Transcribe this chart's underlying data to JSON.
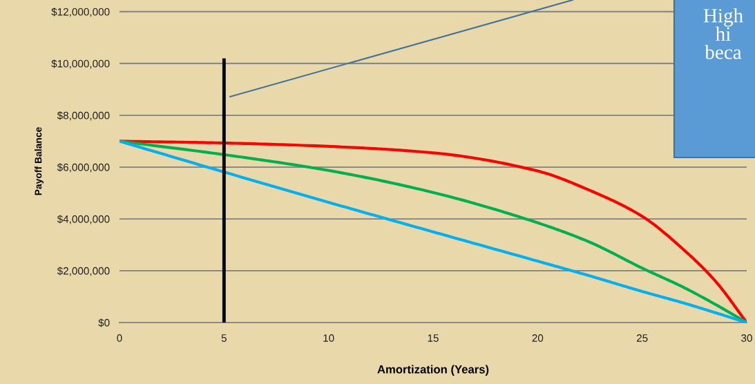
{
  "chart_data": {
    "type": "line",
    "xlabel": "Amortization (Years)",
    "ylabel": "Payoff Balance",
    "x": [
      0,
      5,
      10,
      15,
      20,
      22.5,
      25,
      27,
      28.5,
      30
    ],
    "series": [
      {
        "color": "#ff0000",
        "values": [
          7000000,
          6930000,
          6800000,
          6550000,
          5850000,
          5100000,
          4100000,
          2800000,
          1600000,
          0
        ]
      },
      {
        "color": "#00b050",
        "values": [
          7000000,
          6480000,
          5870000,
          5020000,
          3850000,
          3100000,
          2100000,
          1350000,
          700000,
          0
        ]
      },
      {
        "color": "#00b0f0",
        "values": [
          7000000,
          5810000,
          4640000,
          3500000,
          2370000,
          1800000,
          1200000,
          750000,
          380000,
          0
        ]
      },
      {
        "color": "#000000",
        "x": [
          5,
          5
        ],
        "values": [
          0,
          10130000
        ]
      },
      {
        "color": "#41719c",
        "x": [
          5.29,
          21.67
        ],
        "values": [
          8720000,
          12450000
        ]
      }
    ],
    "xlim": [
      0,
      30
    ],
    "xticks": [
      0,
      5,
      10,
      15,
      20,
      25,
      30
    ],
    "ylim": [
      0,
      12450000
    ],
    "yticks": [
      {
        "value": 0,
        "label": "$0"
      },
      {
        "value": 2000000,
        "label": "$2,000,000"
      },
      {
        "value": 4000000,
        "label": "$4,000,000"
      },
      {
        "value": 6000000,
        "label": "$6,000,000"
      },
      {
        "value": 8000000,
        "label": "$8,000,000"
      },
      {
        "value": 10000000,
        "label": "$10,000,000"
      },
      {
        "value": 12000000,
        "label": "$12,000,000"
      }
    ],
    "grid": "y",
    "annotations": [
      "High\nhi\nbeca"
    ]
  }
}
